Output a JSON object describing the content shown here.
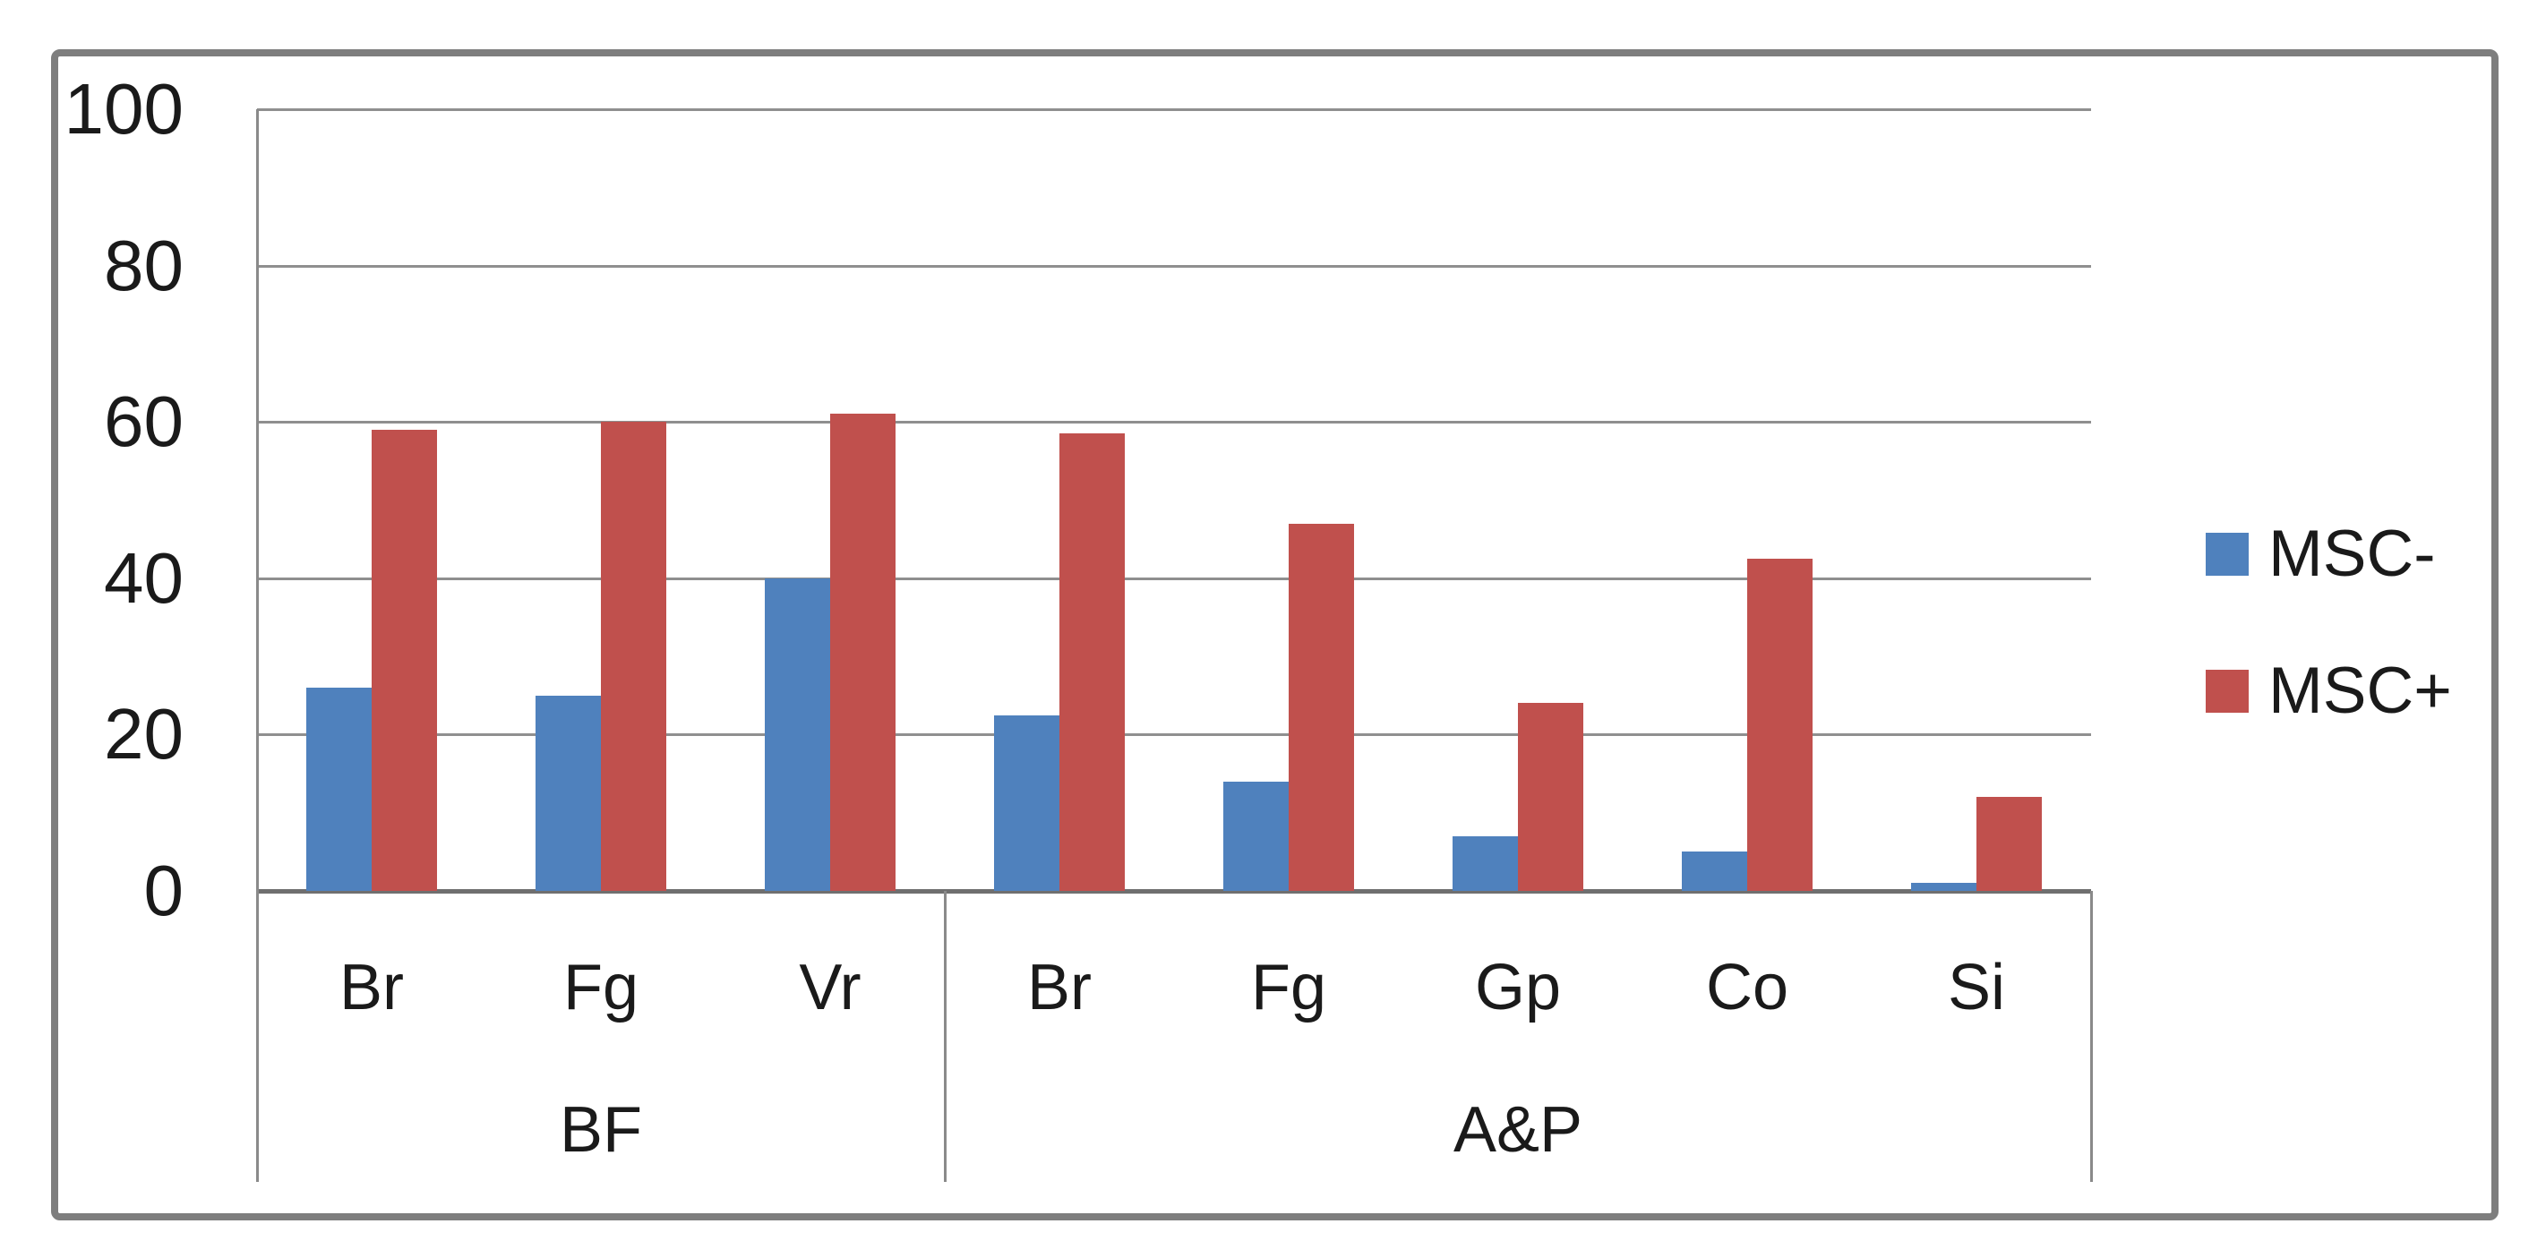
{
  "chart_data": {
    "type": "bar",
    "title": "",
    "xlabel": "",
    "ylabel": "",
    "ylim": [
      0,
      100
    ],
    "yticks": [
      0,
      20,
      40,
      60,
      80,
      100
    ],
    "grid": true,
    "legend_position": "right",
    "groups": [
      {
        "label": "BF",
        "categories": [
          "Br",
          "Fg",
          "Vr"
        ]
      },
      {
        "label": "A&P",
        "categories": [
          "Br",
          "Fg",
          "Gp",
          "Co",
          "Si"
        ]
      }
    ],
    "series": [
      {
        "name": "MSC-",
        "color": "#4F81BD",
        "values": {
          "BF": [
            26,
            25,
            40
          ],
          "A&P": [
            22.5,
            14,
            7,
            5,
            1
          ]
        }
      },
      {
        "name": "MSC+",
        "color": "#C0504D",
        "values": {
          "BF": [
            59,
            60,
            61
          ],
          "A&P": [
            58.5,
            47,
            24,
            42.5,
            12
          ]
        }
      }
    ],
    "colors": {
      "gridline": "#8f8f8f",
      "axis_line": "#6f6f6f",
      "frame_border": "#7e7e7e",
      "text": "#1a1a1a",
      "background": "#ffffff"
    }
  }
}
